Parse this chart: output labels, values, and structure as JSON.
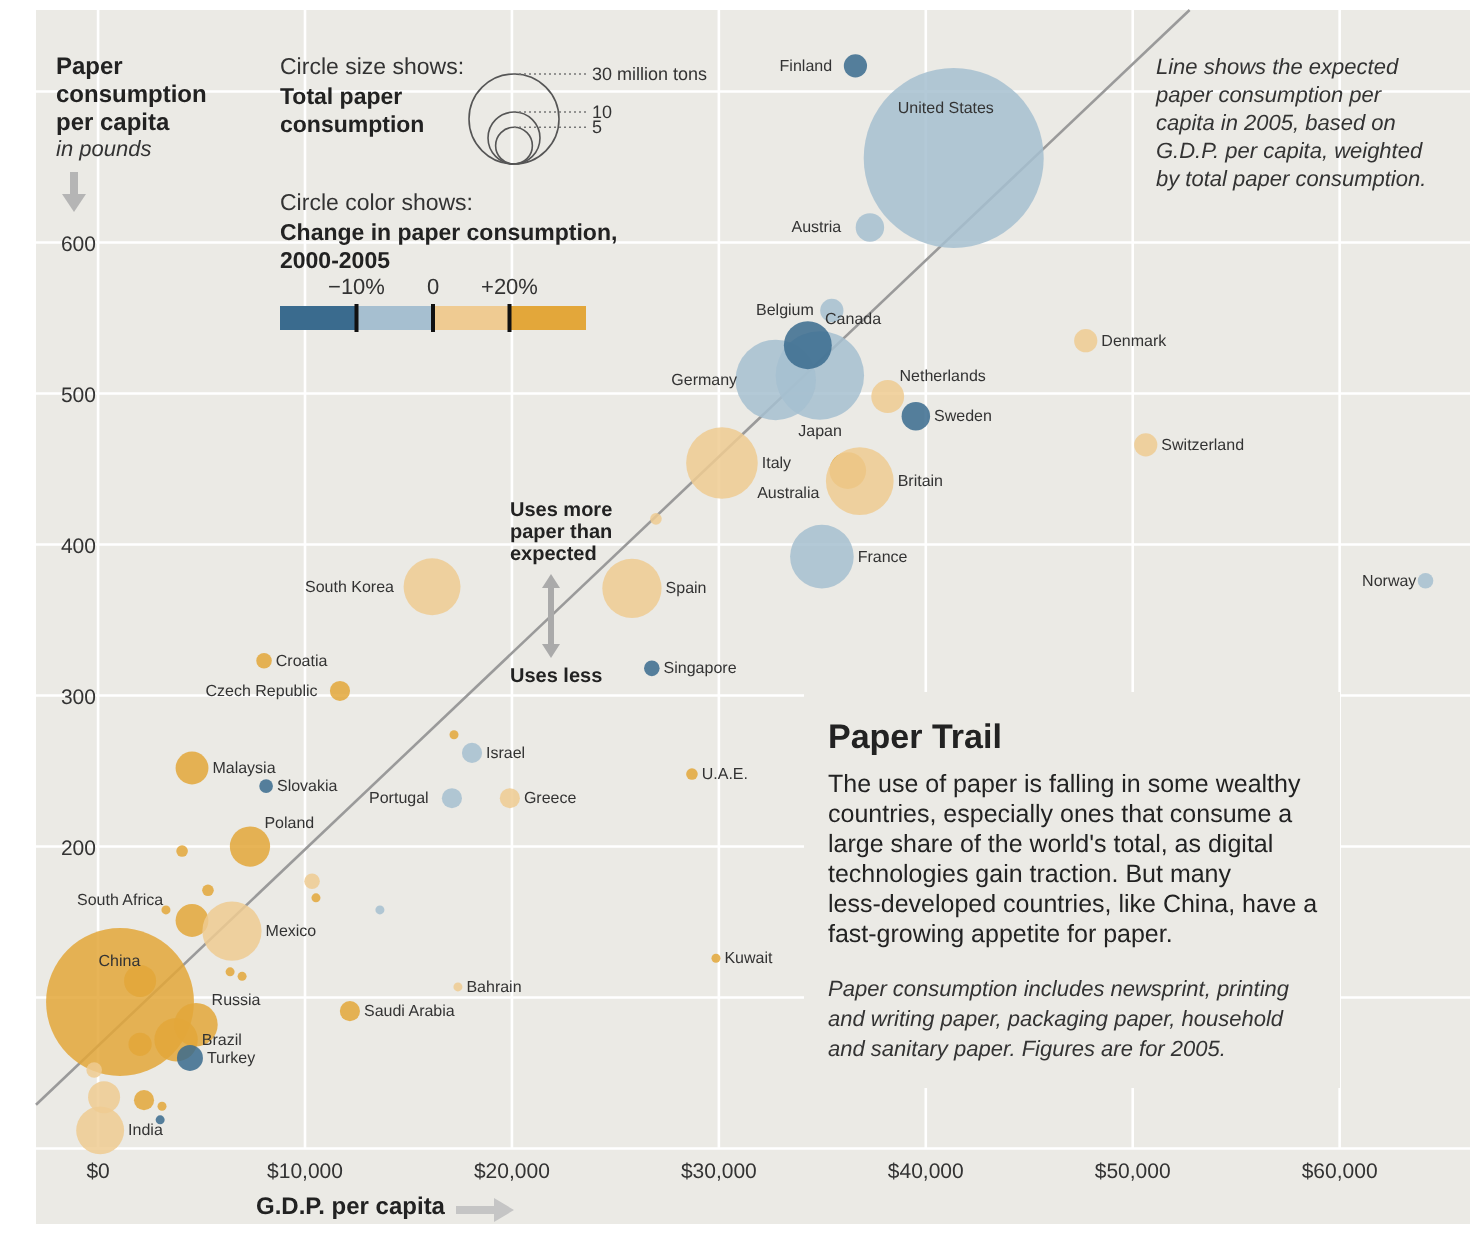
{
  "chart_data": {
    "type": "bubble",
    "title": "Paper Trail",
    "subtitle": "The use of paper is falling in some wealthy countries, especially ones that consume a large share of the world's total, as digital technologies gain traction. But many less-developed countries, like China, have a fast-growing appetite for paper.",
    "xlabel": "G.D.P. per capita",
    "ylabel": "Paper consumption per capita",
    "legend_title": "Circle size shows: Total paper consumption",
    "clabel": "Circle color shows: Change in paper consumption, 2000-2005",
    "annotations": [
      "in pounds",
      "Line shows the expected paper consumption per capita in 2005, based on G.D.P. per capita, weighted by total paper consumption.",
      "Uses more paper than expected",
      "Uses less",
      "Paper consumption includes newsprint, printing and writing paper, packaging paper, household and sanitary paper. Figures are for 2005.",
      "−10%",
      "0",
      "+20%",
      {
        "text": "Finland",
        "x": 36600,
        "y": 717
      },
      {
        "text": "United States",
        "x": 41350,
        "y": 656
      },
      {
        "text": "Austria",
        "x": 37300,
        "y": 610
      },
      {
        "text": "Belgium",
        "x": 35460,
        "y": 555
      },
      {
        "text": "Canada",
        "x": 34300,
        "y": 532
      },
      {
        "text": "Japan",
        "x": 34880,
        "y": 512
      },
      {
        "text": "Germany",
        "x": 32750,
        "y": 509
      },
      {
        "text": "Netherlands",
        "x": 38160,
        "y": 498
      },
      {
        "text": "Sweden",
        "x": 39520,
        "y": 485
      },
      {
        "text": "Denmark",
        "x": 47730,
        "y": 535
      },
      {
        "text": "Switzerland",
        "x": 50630,
        "y": 466
      },
      {
        "text": "Italy",
        "x": 30150,
        "y": 454
      },
      {
        "text": "Australia",
        "x": 36230,
        "y": 449
      },
      {
        "text": "Britain",
        "x": 36810,
        "y": 442
      },
      {
        "text": "France",
        "x": 34980,
        "y": 392
      },
      {
        "text": "Norway",
        "x": 64150,
        "y": 376
      },
      {
        "text": "South Korea",
        "x": 16140,
        "y": 372
      },
      {
        "text": "Spain",
        "x": 25800,
        "y": 371
      },
      {
        "text": "Singapore",
        "x": 26760,
        "y": 318
      },
      {
        "text": "Croatia",
        "x": 8020,
        "y": 323
      },
      {
        "text": "Czech Republic",
        "x": 11690,
        "y": 303
      },
      {
        "text": "Malaysia",
        "x": 4540,
        "y": 252
      },
      {
        "text": "Slovakia",
        "x": 8120,
        "y": 240
      },
      {
        "text": "Israel",
        "x": 18070,
        "y": 262
      },
      {
        "text": "Portugal",
        "x": 17100,
        "y": 232
      },
      {
        "text": "Greece",
        "x": 19900,
        "y": 232
      },
      {
        "text": "U.A.E.",
        "x": 28700,
        "y": 248
      },
      {
        "text": "Poland",
        "x": 7340,
        "y": 200
      },
      {
        "text": "South Africa",
        "x": 4540,
        "y": 151
      },
      {
        "text": "Mexico",
        "x": 6470,
        "y": 144
      },
      {
        "text": "China",
        "x": 1060,
        "y": 97
      },
      {
        "text": "Brazil",
        "x": 3770,
        "y": 72
      },
      {
        "text": "Russia",
        "x": 4730,
        "y": 82
      },
      {
        "text": "Turkey",
        "x": 4440,
        "y": 60
      },
      {
        "text": "India",
        "x": 100,
        "y": 12
      },
      {
        "text": "Kuwait",
        "x": 29860,
        "y": 126
      },
      {
        "text": "Bahrain",
        "x": 17390,
        "y": 107
      },
      {
        "text": "Saudi Arabia",
        "x": 12170,
        "y": 91
      }
    ],
    "xlim": [
      -3000,
      66300
    ],
    "ylim": [
      -50,
      754
    ],
    "xticks": [
      {
        "value": 0,
        "label": "$0"
      },
      {
        "value": 10000,
        "label": "$10,000"
      },
      {
        "value": 20000,
        "label": "$20,000"
      },
      {
        "value": 30000,
        "label": "$30,000"
      },
      {
        "value": 40000,
        "label": "$40,000"
      },
      {
        "value": 50000,
        "label": "$50,000"
      },
      {
        "value": 60000,
        "label": "$60,000"
      }
    ],
    "yticks": [
      {
        "value": 0,
        "label": null
      },
      {
        "value": 100,
        "label": null
      },
      200,
      300,
      400,
      500,
      600,
      {
        "value": 700,
        "label": null
      }
    ],
    "grid": true,
    "size_legend": [
      {
        "value": 30,
        "label": "30 million tons"
      },
      {
        "value": 10,
        "label": "10"
      },
      {
        "value": 5,
        "label": "5"
      }
    ],
    "series": [
      {
        "type": "bubble",
        "color": "#3a6b8e",
        "x": [
          34300,
          39520,
          4440,
          36600,
          26760,
          8120,
          3000
        ],
        "values": [
          532,
          485,
          60,
          717,
          318,
          240,
          19
        ],
        "sizes": [
          8.5,
          3,
          2.5,
          2,
          0.9,
          0.7,
          0.3
        ]
      },
      {
        "type": "bubble",
        "color": "#a6bfd0",
        "x": [
          41350,
          34880,
          32750,
          34980,
          37300,
          35460,
          18070,
          17100,
          64150,
          13620
        ],
        "values": [
          656,
          512,
          509,
          392,
          610,
          555,
          262,
          232,
          376,
          158
        ],
        "sizes": [
          120,
          29,
          24,
          15,
          3,
          2,
          1.5,
          1.5,
          0.9,
          0.3
        ]
      },
      {
        "type": "bubble",
        "color": "#efcb92",
        "x": [
          30150,
          36810,
          25800,
          6470,
          16140,
          100,
          38160,
          47730,
          50630,
          19900,
          26960,
          10340,
          17390,
          290,
          -190
        ],
        "values": [
          454,
          442,
          371,
          144,
          372,
          12,
          498,
          535,
          466,
          232,
          417,
          177,
          107,
          34,
          52
        ],
        "sizes": [
          19,
          17,
          13,
          13,
          12,
          8.5,
          4,
          2,
          2,
          1.5,
          0.5,
          0.9,
          0.3,
          3.8,
          0.9
        ]
      },
      {
        "type": "bubble",
        "color": "#e3a73a",
        "x": [
          1060,
          3770,
          4730,
          7340,
          36230,
          4540,
          4540,
          11690,
          12170,
          8020,
          28700,
          17200,
          4060,
          10530,
          29860,
          2030,
          2220,
          3280,
          6380,
          6960,
          3090,
          2030,
          5310
        ],
        "values": [
          97,
          72,
          82,
          200,
          449,
          252,
          151,
          303,
          91,
          323,
          248,
          274,
          197,
          166,
          126,
          69,
          32,
          158,
          117,
          114,
          28,
          111,
          171
        ],
        "sizes": [
          81,
          7,
          7,
          6,
          5,
          4,
          4,
          1.5,
          1.5,
          0.9,
          0.5,
          0.3,
          0.5,
          0.3,
          0.3,
          2,
          1.5,
          0.3,
          0.3,
          0.3,
          0.3,
          3.8,
          0.5
        ]
      },
      {
        "type": "line",
        "color": "#9a9a9a",
        "x": [
          -3000,
          52750
        ],
        "values": [
          29,
          754
        ]
      }
    ]
  }
}
